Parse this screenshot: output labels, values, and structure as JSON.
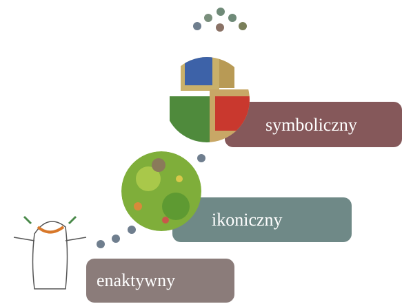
{
  "stages": [
    {
      "label": "symboliczny"
    },
    {
      "label": "ikoniczny"
    },
    {
      "label": "enaktywny"
    }
  ]
}
